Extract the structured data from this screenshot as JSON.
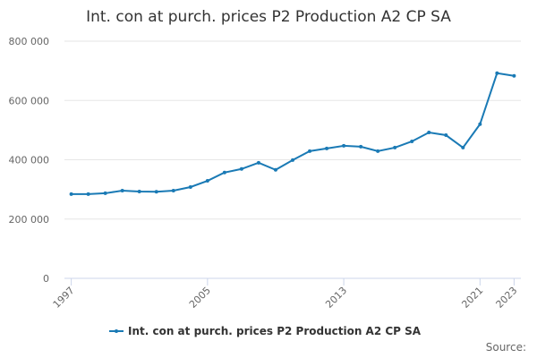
{
  "chart_data": {
    "type": "line",
    "title": "Int. con at purch. prices P2 Production A2 CP SA",
    "x": [
      1997,
      1998,
      1999,
      2000,
      2001,
      2002,
      2003,
      2004,
      2005,
      2006,
      2007,
      2008,
      2009,
      2010,
      2011,
      2012,
      2013,
      2014,
      2015,
      2016,
      2017,
      2018,
      2019,
      2020,
      2021,
      2022,
      2023
    ],
    "series": [
      {
        "name": "Int. con at purch. prices P2 Production A2 CP SA",
        "color": "#1a7ab5",
        "values": [
          284000,
          284000,
          287000,
          296000,
          293000,
          292000,
          296000,
          308000,
          329000,
          357000,
          369000,
          390000,
          366000,
          399000,
          429000,
          438000,
          447000,
          444000,
          429000,
          441000,
          462000,
          492000,
          483000,
          441000,
          520000,
          692000,
          683000
        ]
      }
    ],
    "xlim": [
      1996.6,
      2023.4
    ],
    "xticks": [
      1997,
      2005,
      2013,
      2021,
      2023
    ],
    "ylim": [
      0,
      800000
    ],
    "yticks": [
      0,
      {
        "value": 200000,
        "label": "200 000"
      },
      {
        "value": 400000,
        "label": "400 000"
      },
      {
        "value": 600000,
        "label": "600 000"
      },
      {
        "value": 800000,
        "label": "800 000"
      }
    ],
    "grid": true,
    "legend": "bottom",
    "source": "Source:"
  }
}
